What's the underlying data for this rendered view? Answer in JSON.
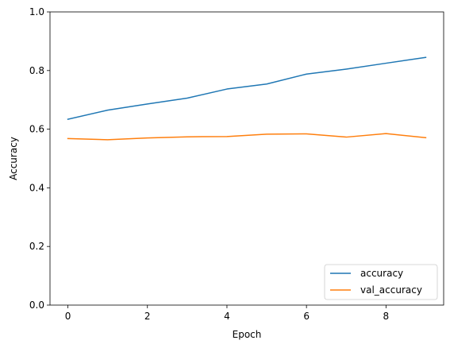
{
  "chart_data": {
    "type": "line",
    "xlabel": "Epoch",
    "ylabel": "Accuracy",
    "xlim": [
      -0.45,
      9.45
    ],
    "ylim": [
      0.0,
      1.0
    ],
    "x_ticks": [
      0,
      2,
      4,
      6,
      8
    ],
    "y_ticks": [
      0.0,
      0.2,
      0.4,
      0.6,
      0.8,
      1.0
    ],
    "x_tick_labels": [
      "0",
      "2",
      "4",
      "6",
      "8"
    ],
    "y_tick_labels": [
      "0.0",
      "0.2",
      "0.4",
      "0.6",
      "0.8",
      "1.0"
    ],
    "grid": false,
    "legend_position": "lower right",
    "x": [
      0,
      1,
      2,
      3,
      4,
      5,
      6,
      7,
      8,
      9
    ],
    "series": [
      {
        "name": "accuracy",
        "color": "#1f77b4",
        "values": [
          0.634,
          0.665,
          0.686,
          0.706,
          0.737,
          0.754,
          0.788,
          0.805,
          0.825,
          0.845
        ]
      },
      {
        "name": "val_accuracy",
        "color": "#ff7f0e",
        "values": [
          0.568,
          0.564,
          0.57,
          0.574,
          0.575,
          0.583,
          0.584,
          0.573,
          0.585,
          0.571
        ]
      }
    ]
  }
}
